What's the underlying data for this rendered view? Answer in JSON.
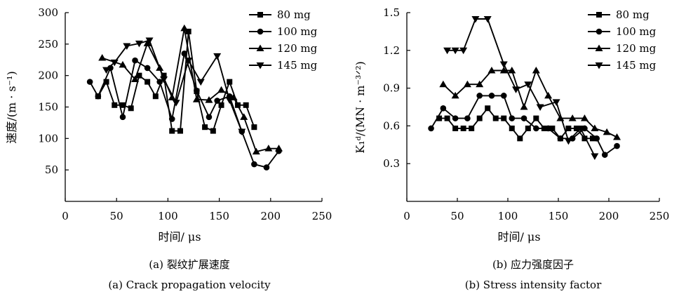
{
  "legend": [
    "80 mg",
    "100 mg",
    "120 mg",
    "145 mg"
  ],
  "chart_data": [
    {
      "type": "line",
      "title": "",
      "xlabel": "时间/ μs",
      "ylabel": "速度/(m · s⁻¹)",
      "xlim": [
        0,
        250
      ],
      "ylim": [
        0,
        300
      ],
      "xticks": [
        "0",
        "50",
        "100",
        "150",
        "200",
        "250"
      ],
      "yticks": [
        "50",
        "100",
        "150",
        "200",
        "250",
        "300"
      ],
      "caption_cn": "(a) 裂纹扩展速度",
      "caption_en": "(a) Crack propagation velocity",
      "legend_position": "top-right",
      "series": [
        {
          "name": "80 mg",
          "marker": "square",
          "points": [
            [
              32,
              167
            ],
            [
              40,
              190
            ],
            [
              48,
              153
            ],
            [
              56,
              153
            ],
            [
              64,
              148
            ],
            [
              72,
              200
            ],
            [
              80,
              190
            ],
            [
              88,
              167
            ],
            [
              96,
              200
            ],
            [
              104,
              112
            ],
            [
              112,
              112
            ],
            [
              120,
              270
            ],
            [
              128,
              175
            ],
            [
              136,
              118
            ],
            [
              144,
              112
            ],
            [
              152,
              153
            ],
            [
              160,
              190
            ],
            [
              168,
              153
            ],
            [
              176,
              153
            ],
            [
              184,
              118
            ]
          ]
        },
        {
          "name": "100 mg",
          "marker": "circle",
          "points": [
            [
              24,
              190
            ],
            [
              32,
              167
            ],
            [
              44,
              212
            ],
            [
              56,
              134
            ],
            [
              68,
              224
            ],
            [
              80,
              212
            ],
            [
              92,
              190
            ],
            [
              104,
              131
            ],
            [
              116,
              235
            ],
            [
              128,
              176
            ],
            [
              140,
              134
            ],
            [
              148,
              160
            ],
            [
              160,
              167
            ],
            [
              172,
              111
            ],
            [
              184,
              59
            ],
            [
              196,
              54
            ],
            [
              208,
              80
            ]
          ]
        },
        {
          "name": "120 mg",
          "marker": "triangle-up",
          "points": [
            [
              36,
              228
            ],
            [
              56,
              217
            ],
            [
              68,
              194
            ],
            [
              80,
              251
            ],
            [
              92,
              212
            ],
            [
              104,
              165
            ],
            [
              116,
              275
            ],
            [
              128,
              162
            ],
            [
              140,
              161
            ],
            [
              152,
              177
            ],
            [
              164,
              165
            ],
            [
              174,
              134
            ],
            [
              186,
              79
            ],
            [
              198,
              84
            ],
            [
              208,
              84
            ]
          ]
        },
        {
          "name": "145 mg",
          "marker": "triangle-down",
          "points": [
            [
              40,
              209
            ],
            [
              48,
              221
            ],
            [
              60,
              247
            ],
            [
              72,
              251
            ],
            [
              82,
              256
            ],
            [
              96,
              194
            ],
            [
              108,
              157
            ],
            [
              120,
              224
            ],
            [
              132,
              190
            ],
            [
              148,
              231
            ],
            [
              160,
              161
            ],
            [
              172,
              111
            ]
          ]
        }
      ]
    },
    {
      "type": "line",
      "title": "",
      "xlabel": "时间/ μs",
      "ylabel": "K₁ᵈ/(MN · m⁻³ᐟ²)",
      "xlim": [
        0,
        250
      ],
      "ylim": [
        0,
        1.5
      ],
      "xticks": [
        "0",
        "50",
        "100",
        "150",
        "200",
        "250"
      ],
      "yticks": [
        "0.3",
        "0.6",
        "0.9",
        "1.2",
        "1.5"
      ],
      "caption_cn": "(b) 应力强度因子",
      "caption_en": "(b) Stress intensity factor",
      "legend_position": "top-right",
      "series": [
        {
          "name": "80 mg",
          "marker": "square",
          "points": [
            [
              32,
              0.66
            ],
            [
              40,
              0.66
            ],
            [
              48,
              0.58
            ],
            [
              56,
              0.58
            ],
            [
              64,
              0.58
            ],
            [
              72,
              0.66
            ],
            [
              80,
              0.74
            ],
            [
              88,
              0.66
            ],
            [
              96,
              0.66
            ],
            [
              104,
              0.58
            ],
            [
              112,
              0.5
            ],
            [
              120,
              0.58
            ],
            [
              128,
              0.66
            ],
            [
              136,
              0.58
            ],
            [
              144,
              0.58
            ],
            [
              152,
              0.5
            ],
            [
              160,
              0.58
            ],
            [
              168,
              0.58
            ],
            [
              176,
              0.5
            ],
            [
              184,
              0.5
            ]
          ]
        },
        {
          "name": "100 mg",
          "marker": "circle",
          "points": [
            [
              24,
              0.58
            ],
            [
              36,
              0.74
            ],
            [
              48,
              0.66
            ],
            [
              60,
              0.66
            ],
            [
              72,
              0.84
            ],
            [
              84,
              0.84
            ],
            [
              96,
              0.84
            ],
            [
              104,
              0.66
            ],
            [
              116,
              0.66
            ],
            [
              128,
              0.58
            ],
            [
              140,
              0.58
            ],
            [
              152,
              0.5
            ],
            [
              164,
              0.5
            ],
            [
              176,
              0.58
            ],
            [
              188,
              0.5
            ],
            [
              196,
              0.37
            ],
            [
              208,
              0.44
            ]
          ]
        },
        {
          "name": "120 mg",
          "marker": "triangle-up",
          "points": [
            [
              36,
              0.93
            ],
            [
              48,
              0.84
            ],
            [
              60,
              0.93
            ],
            [
              72,
              0.93
            ],
            [
              84,
              1.04
            ],
            [
              96,
              1.04
            ],
            [
              104,
              1.04
            ],
            [
              116,
              0.75
            ],
            [
              128,
              1.04
            ],
            [
              140,
              0.84
            ],
            [
              152,
              0.66
            ],
            [
              164,
              0.66
            ],
            [
              176,
              0.66
            ],
            [
              186,
              0.58
            ],
            [
              198,
              0.55
            ],
            [
              208,
              0.51
            ]
          ]
        },
        {
          "name": "145 mg",
          "marker": "triangle-down",
          "points": [
            [
              40,
              1.2
            ],
            [
              48,
              1.2
            ],
            [
              56,
              1.2
            ],
            [
              68,
              1.45
            ],
            [
              80,
              1.45
            ],
            [
              96,
              1.09
            ],
            [
              108,
              0.89
            ],
            [
              120,
              0.93
            ],
            [
              132,
              0.75
            ],
            [
              148,
              0.79
            ],
            [
              160,
              0.48
            ],
            [
              172,
              0.58
            ],
            [
              186,
              0.36
            ]
          ]
        }
      ]
    }
  ]
}
